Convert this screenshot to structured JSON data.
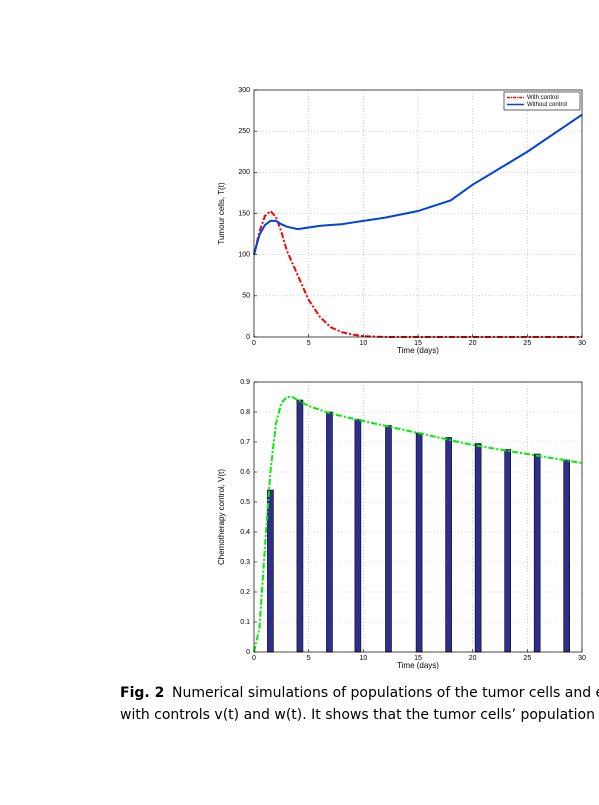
{
  "chart_data": [
    {
      "type": "line",
      "xlabel": "Time (days)",
      "ylabel": "Tumour cells, T(t)",
      "x": [
        0,
        0.5,
        1,
        1.5,
        2,
        2.5,
        3,
        4,
        5,
        6,
        7,
        8,
        9,
        10,
        12,
        15,
        18,
        20,
        25,
        30
      ],
      "series": [
        {
          "name": "With control",
          "color": "#ff0000",
          "dash": true,
          "values": [
            100,
            128,
            147,
            153,
            146,
            128,
            105,
            75,
            45,
            25,
            12,
            6,
            3,
            1,
            0,
            0,
            0,
            0,
            0,
            0
          ]
        },
        {
          "name": "Without control",
          "color": "#0044dd",
          "dash": false,
          "values": [
            100,
            124,
            136,
            141,
            141,
            137,
            134,
            131,
            133,
            135,
            136,
            137,
            139,
            141,
            145,
            153,
            166,
            185,
            225,
            270
          ]
        }
      ],
      "xlim": [
        0,
        30
      ],
      "xticks": [
        0,
        5,
        10,
        15,
        20,
        25,
        30
      ],
      "ylim": [
        0,
        300
      ],
      "yticks": [
        0,
        50,
        100,
        150,
        200,
        250,
        300
      ],
      "grid": true,
      "legend": "upper right"
    },
    {
      "type": "bar",
      "xlabel": "Time (days)",
      "ylabel": "Chemotherapy control, V(t)",
      "series": [
        {
          "type": "bar",
          "color": "#2e2e8c",
          "x": [
            1.5,
            4.2,
            6.9,
            9.5,
            12.3,
            15.1,
            17.8,
            20.5,
            23.2,
            25.9,
            28.6
          ],
          "values": [
            0.54,
            0.84,
            0.8,
            0.775,
            0.755,
            0.73,
            0.715,
            0.695,
            0.675,
            0.66,
            0.64
          ]
        },
        {
          "type": "line",
          "color": "#00ee00",
          "dash": true,
          "x": [
            0,
            0.5,
            1,
            1.5,
            2,
            2.5,
            3,
            3.5,
            4,
            5,
            7,
            10,
            15,
            20,
            25,
            30
          ],
          "values": [
            0,
            0.08,
            0.35,
            0.6,
            0.76,
            0.83,
            0.85,
            0.85,
            0.84,
            0.82,
            0.795,
            0.77,
            0.73,
            0.69,
            0.66,
            0.63
          ]
        }
      ],
      "xlim": [
        0,
        30
      ],
      "xticks": [
        0,
        5,
        10,
        15,
        20,
        25,
        30
      ],
      "ylim": [
        0,
        0.9
      ],
      "yticks": [
        0,
        0.1,
        0.2,
        0.3,
        0.4,
        0.5,
        0.6,
        0.7,
        0.8,
        0.9
      ],
      "grid": true
    }
  ],
  "caption": {
    "label": "Fig. 2",
    "lines": [
      "Numerical simulations of populations of the tumor cells and eff",
      "with controls v(t) and w(t). It shows that the tumor cells’ population"
    ]
  }
}
